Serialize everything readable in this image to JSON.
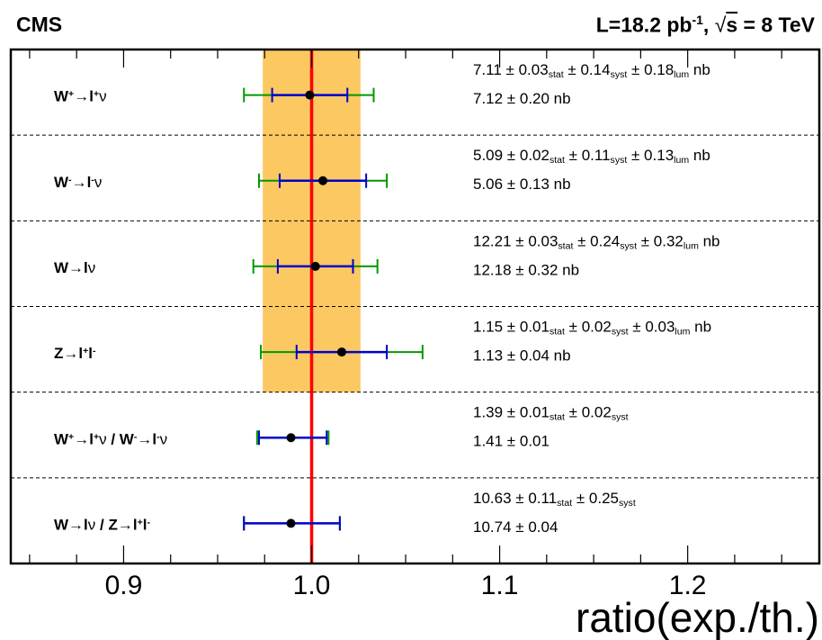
{
  "header": {
    "experiment": "CMS",
    "lumi_prefix": "L=18.2 pb",
    "lumi_exponent": "-1",
    "energy_sep": ", ",
    "sqrt_symbol": "√",
    "energy_var": "s",
    "energy_value": " = 8 TeV"
  },
  "colors": {
    "theory_band": "#fbc862",
    "reference_line": "#ff0000",
    "stat_error": "#0000cc",
    "total_error": "#009900",
    "point": "#000000"
  },
  "chart_data": {
    "type": "scatter",
    "xlabel": "ratio(exp./th.)",
    "xlim": [
      0.84,
      1.27
    ],
    "xticks": [
      0.9,
      1.0,
      1.1,
      1.2
    ],
    "xtick_labels": [
      "0.9",
      "1.0",
      "1.1",
      "1.2"
    ],
    "reference": 1.0,
    "theory_band": [
      0.974,
      1.026
    ],
    "grid": false,
    "rows": [
      {
        "label_parts": [
          [
            "W",
            ""
          ],
          [
            "+",
            "sup"
          ],
          [
            "→l",
            ""
          ],
          [
            "+",
            "sup"
          ],
          [
            "ν",
            "nu"
          ]
        ],
        "ratio": 0.999,
        "stat_err": [
          0.979,
          1.019
        ],
        "total_err": [
          0.964,
          1.033
        ],
        "measurement_parts": [
          [
            "7.11 ± 0.03",
            ""
          ],
          [
            "stat",
            "sub"
          ],
          [
            " ± 0.14",
            ""
          ],
          [
            "syst",
            "sub"
          ],
          [
            " ± 0.18",
            ""
          ],
          [
            "lum",
            "sub"
          ],
          [
            " nb",
            ""
          ]
        ],
        "theory": "7.12 ± 0.20 nb"
      },
      {
        "label_parts": [
          [
            "W",
            ""
          ],
          [
            "-",
            "sup"
          ],
          [
            "→l",
            ""
          ],
          [
            "-",
            "sup"
          ],
          [
            "ν",
            "nu"
          ]
        ],
        "ratio": 1.006,
        "stat_err": [
          0.983,
          1.029
        ],
        "total_err": [
          0.972,
          1.04
        ],
        "measurement_parts": [
          [
            "5.09 ± 0.02",
            ""
          ],
          [
            "stat",
            "sub"
          ],
          [
            " ± 0.11",
            ""
          ],
          [
            "syst",
            "sub"
          ],
          [
            " ± 0.13",
            ""
          ],
          [
            "lum",
            "sub"
          ],
          [
            " nb",
            ""
          ]
        ],
        "theory": "5.06 ± 0.13 nb"
      },
      {
        "label_parts": [
          [
            "W→l",
            ""
          ],
          [
            "ν",
            "nu"
          ]
        ],
        "ratio": 1.002,
        "stat_err": [
          0.982,
          1.022
        ],
        "total_err": [
          0.969,
          1.035
        ],
        "measurement_parts": [
          [
            "12.21 ± 0.03",
            ""
          ],
          [
            "stat",
            "sub"
          ],
          [
            " ± 0.24",
            ""
          ],
          [
            "syst",
            "sub"
          ],
          [
            " ± 0.32",
            ""
          ],
          [
            "lum",
            "sub"
          ],
          [
            " nb",
            ""
          ]
        ],
        "theory": "12.18 ± 0.32 nb"
      },
      {
        "label_parts": [
          [
            "Z→l",
            ""
          ],
          [
            "+",
            "sup"
          ],
          [
            "l",
            ""
          ],
          [
            "-",
            "sup"
          ]
        ],
        "ratio": 1.016,
        "stat_err": [
          0.992,
          1.04
        ],
        "total_err": [
          0.973,
          1.059
        ],
        "measurement_parts": [
          [
            "1.15 ± 0.01",
            ""
          ],
          [
            "stat",
            "sub"
          ],
          [
            " ± 0.02",
            ""
          ],
          [
            "syst",
            "sub"
          ],
          [
            " ± 0.03",
            ""
          ],
          [
            "lum",
            "sub"
          ],
          [
            " nb",
            ""
          ]
        ],
        "theory": "1.13 ± 0.04 nb"
      },
      {
        "label_parts": [
          [
            "W",
            ""
          ],
          [
            "+",
            "sup"
          ],
          [
            "→l",
            ""
          ],
          [
            "+",
            "sup"
          ],
          [
            "ν",
            "nu"
          ],
          [
            " / W",
            ""
          ],
          [
            "-",
            "sup"
          ],
          [
            "→l",
            ""
          ],
          [
            "-",
            "sup"
          ],
          [
            "ν",
            "nu"
          ]
        ],
        "ratio": 0.989,
        "stat_err": [
          0.972,
          1.008
        ],
        "total_err": [
          0.971,
          1.009
        ],
        "measurement_parts": [
          [
            "1.39 ± 0.01",
            ""
          ],
          [
            "stat",
            "sub"
          ],
          [
            " ± 0.02",
            ""
          ],
          [
            "syst",
            "sub"
          ]
        ],
        "theory": "1.41 ± 0.01"
      },
      {
        "label_parts": [
          [
            "W→l",
            ""
          ],
          [
            "ν",
            "nu"
          ],
          [
            " / Z→l",
            ""
          ],
          [
            "+",
            "sup"
          ],
          [
            "l",
            ""
          ],
          [
            "-",
            "sup"
          ]
        ],
        "ratio": 0.989,
        "stat_err": [
          0.964,
          1.015
        ],
        "total_err": [
          0.964,
          1.015
        ],
        "measurement_parts": [
          [
            "10.63 ± 0.11",
            ""
          ],
          [
            "stat",
            "sub"
          ],
          [
            " ± 0.25",
            ""
          ],
          [
            "syst",
            "sub"
          ]
        ],
        "theory": "10.74 ± 0.04"
      }
    ]
  }
}
